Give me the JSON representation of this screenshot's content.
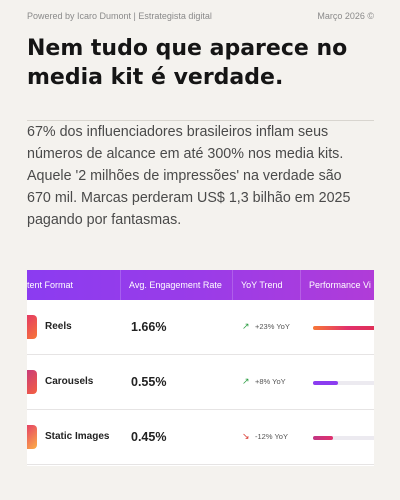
{
  "header": {
    "credit": "Powered by Icaro Dumont | Estrategista digital",
    "date": "Março 2026 ©"
  },
  "title_lines": [
    "Nem tudo que aparece no",
    "media kit é verdade."
  ],
  "paragraph_lines": [
    "67% dos influenciadores brasileiros inflam seus",
    "números de alcance em até 300% nos media kits.",
    "Aquele '2 milhões de impressões' na verdade são",
    "670 mil. Marcas perderam US$ 1,3 bilhão em 2025",
    "pagando por fantasmas."
  ],
  "table": {
    "headers": [
      "tent Format",
      "Avg. Engagement Rate",
      "YoY Trend",
      "Performance Vi"
    ],
    "rows": [
      {
        "format": "Reels",
        "rate": "1.66%",
        "arrow": "↗",
        "trend": "+23% YoY"
      },
      {
        "format": "Carousels",
        "rate": "0.55%",
        "arrow": "↗",
        "trend": "+8% YoY"
      },
      {
        "format": "Static Images",
        "rate": "0.45%",
        "arrow": "↘",
        "trend": "-12% YoY"
      }
    ]
  }
}
